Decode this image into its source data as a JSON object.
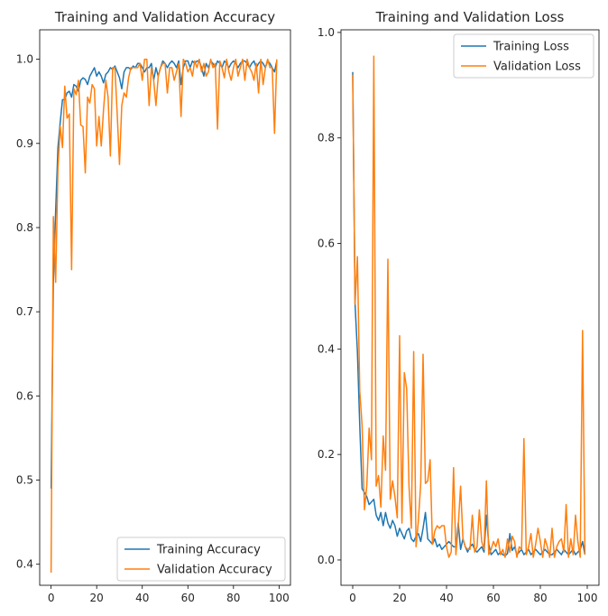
{
  "chart_data": [
    {
      "type": "line",
      "title": "Training and Validation Accuracy",
      "xlabel": "",
      "ylabel": "",
      "xlim": [
        -5,
        105
      ],
      "ylim": [
        0.375,
        1.035
      ],
      "xticks": [
        0,
        20,
        40,
        60,
        80,
        100
      ],
      "yticks": [
        0.4,
        0.5,
        0.6,
        0.7,
        0.8,
        0.9,
        1.0
      ],
      "ytick_labels": [
        "0.4",
        "0.5",
        "0.6",
        "0.7",
        "0.8",
        "0.9",
        "1.0"
      ],
      "legend": "lower-right",
      "grid": false,
      "series": [
        {
          "name": "Training Accuracy",
          "color": "#1f77b4",
          "x": [
            0,
            1,
            2,
            3,
            4,
            5,
            6,
            7,
            8,
            9,
            10,
            11,
            12,
            13,
            14,
            15,
            16,
            17,
            18,
            19,
            20,
            21,
            22,
            23,
            24,
            25,
            26,
            27,
            28,
            29,
            30,
            31,
            32,
            33,
            34,
            35,
            36,
            37,
            38,
            39,
            40,
            41,
            42,
            43,
            44,
            45,
            46,
            47,
            48,
            49,
            50,
            51,
            52,
            53,
            54,
            55,
            56,
            57,
            58,
            59,
            60,
            61,
            62,
            63,
            64,
            65,
            66,
            67,
            68,
            69,
            70,
            71,
            72,
            73,
            74,
            75,
            76,
            77,
            78,
            79,
            80,
            81,
            82,
            83,
            84,
            85,
            86,
            87,
            88,
            89,
            90,
            91,
            92,
            93,
            94,
            95,
            96,
            97,
            98,
            99
          ],
          "y": [
            0.49,
            0.735,
            0.82,
            0.895,
            0.925,
            0.952,
            0.952,
            0.96,
            0.962,
            0.955,
            0.97,
            0.968,
            0.962,
            0.975,
            0.978,
            0.976,
            0.97,
            0.98,
            0.985,
            0.99,
            0.98,
            0.985,
            0.98,
            0.972,
            0.982,
            0.985,
            0.99,
            0.988,
            0.992,
            0.985,
            0.978,
            0.965,
            0.985,
            0.99,
            0.99,
            0.988,
            0.992,
            0.99,
            0.995,
            0.995,
            0.99,
            0.985,
            0.99,
            0.99,
            0.995,
            0.975,
            0.99,
            0.98,
            0.99,
            0.998,
            0.995,
            0.99,
            0.995,
            0.998,
            0.995,
            0.99,
            0.998,
            0.97,
            0.99,
            0.998,
            0.998,
            0.99,
            0.998,
            0.995,
            0.998,
            0.998,
            0.99,
            0.98,
            0.995,
            0.99,
            0.998,
            0.995,
            0.99,
            0.998,
            0.995,
            0.99,
            0.998,
            0.995,
            0.99,
            0.995,
            0.998,
            0.995,
            0.99,
            0.995,
            0.998,
            0.998,
            0.995,
            0.99,
            0.995,
            0.998,
            0.99,
            0.995,
            0.998,
            0.995,
            0.99,
            0.998,
            0.995,
            0.99,
            0.985,
            0.998
          ]
        },
        {
          "name": "Validation Accuracy",
          "color": "#ff7f0e",
          "x": [
            0,
            1,
            2,
            3,
            4,
            5,
            6,
            7,
            8,
            9,
            10,
            11,
            12,
            13,
            14,
            15,
            16,
            17,
            18,
            19,
            20,
            21,
            22,
            23,
            24,
            25,
            26,
            27,
            28,
            29,
            30,
            31,
            32,
            33,
            34,
            35,
            36,
            37,
            38,
            39,
            40,
            41,
            42,
            43,
            44,
            45,
            46,
            47,
            48,
            49,
            50,
            51,
            52,
            53,
            54,
            55,
            56,
            57,
            58,
            59,
            60,
            61,
            62,
            63,
            64,
            65,
            66,
            67,
            68,
            69,
            70,
            71,
            72,
            73,
            74,
            75,
            76,
            77,
            78,
            79,
            80,
            81,
            82,
            83,
            84,
            85,
            86,
            87,
            88,
            89,
            90,
            91,
            92,
            93,
            94,
            95,
            96,
            97,
            98,
            99
          ],
          "y": [
            0.39,
            0.813,
            0.735,
            0.87,
            0.92,
            0.895,
            0.968,
            0.93,
            0.935,
            0.75,
            0.965,
            0.958,
            0.975,
            0.922,
            0.92,
            0.865,
            0.955,
            0.948,
            0.97,
            0.965,
            0.897,
            0.932,
            0.897,
            0.94,
            0.975,
            0.955,
            0.885,
            0.99,
            0.99,
            0.935,
            0.875,
            0.945,
            0.96,
            0.955,
            0.978,
            0.99,
            0.99,
            0.99,
            0.99,
            0.995,
            0.975,
            1.0,
            1.0,
            0.945,
            0.99,
            0.975,
            0.945,
            0.98,
            0.99,
            0.995,
            0.995,
            0.96,
            0.99,
            0.99,
            0.975,
            0.985,
            0.995,
            0.932,
            1.0,
            0.995,
            0.985,
            0.99,
            0.98,
            0.998,
            0.99,
            1.0,
            0.985,
            0.995,
            0.98,
            0.985,
            1.0,
            0.99,
            0.995,
            0.917,
            0.998,
            0.99,
            0.978,
            1.0,
            0.985,
            0.975,
            0.99,
            1.0,
            0.98,
            0.99,
            1.0,
            0.975,
            1.0,
            0.99,
            0.985,
            0.975,
            0.995,
            0.96,
            1.0,
            0.97,
            0.99,
            1.0,
            0.99,
            0.99,
            0.912,
            1.0
          ]
        }
      ]
    },
    {
      "type": "line",
      "title": "Training and Validation Loss",
      "xlabel": "",
      "ylabel": "",
      "xlim": [
        -5,
        105
      ],
      "ylim": [
        -0.048,
        1.005
      ],
      "xticks": [
        0,
        20,
        40,
        60,
        80,
        100
      ],
      "yticks": [
        0.0,
        0.2,
        0.4,
        0.6,
        0.8,
        1.0
      ],
      "ytick_labels": [
        "0.0",
        "0.2",
        "0.4",
        "0.6",
        "0.8",
        "1.0"
      ],
      "legend": "upper-right",
      "grid": false,
      "series": [
        {
          "name": "Training Loss",
          "color": "#1f77b4",
          "x": [
            0,
            1,
            2,
            3,
            4,
            5,
            6,
            7,
            8,
            9,
            10,
            11,
            12,
            13,
            14,
            15,
            16,
            17,
            18,
            19,
            20,
            21,
            22,
            23,
            24,
            25,
            26,
            27,
            28,
            29,
            30,
            31,
            32,
            33,
            34,
            35,
            36,
            37,
            38,
            39,
            40,
            41,
            42,
            43,
            44,
            45,
            46,
            47,
            48,
            49,
            50,
            51,
            52,
            53,
            54,
            55,
            56,
            57,
            58,
            59,
            60,
            61,
            62,
            63,
            64,
            65,
            66,
            67,
            68,
            69,
            70,
            71,
            72,
            73,
            74,
            75,
            76,
            77,
            78,
            79,
            80,
            81,
            82,
            83,
            84,
            85,
            86,
            87,
            88,
            89,
            90,
            91,
            92,
            93,
            94,
            95,
            96,
            97,
            98,
            99
          ],
          "y": [
            0.925,
            0.485,
            0.395,
            0.255,
            0.135,
            0.128,
            0.12,
            0.105,
            0.11,
            0.115,
            0.085,
            0.075,
            0.09,
            0.065,
            0.09,
            0.07,
            0.06,
            0.075,
            0.065,
            0.045,
            0.06,
            0.05,
            0.04,
            0.055,
            0.06,
            0.04,
            0.035,
            0.045,
            0.05,
            0.035,
            0.06,
            0.09,
            0.04,
            0.035,
            0.03,
            0.04,
            0.025,
            0.03,
            0.02,
            0.025,
            0.03,
            0.035,
            0.03,
            0.025,
            0.025,
            0.07,
            0.02,
            0.04,
            0.025,
            0.015,
            0.025,
            0.03,
            0.02,
            0.015,
            0.02,
            0.025,
            0.015,
            0.085,
            0.03,
            0.01,
            0.015,
            0.02,
            0.01,
            0.015,
            0.01,
            0.008,
            0.012,
            0.05,
            0.018,
            0.025,
            0.01,
            0.015,
            0.02,
            0.01,
            0.015,
            0.02,
            0.01,
            0.015,
            0.02,
            0.015,
            0.01,
            0.015,
            0.02,
            0.015,
            0.01,
            0.01,
            0.015,
            0.02,
            0.015,
            0.01,
            0.02,
            0.015,
            0.01,
            0.015,
            0.02,
            0.01,
            0.015,
            0.02,
            0.035,
            0.01
          ]
        },
        {
          "name": "Validation Loss",
          "color": "#ff7f0e",
          "x": [
            0,
            1,
            2,
            3,
            4,
            5,
            6,
            7,
            8,
            9,
            10,
            11,
            12,
            13,
            14,
            15,
            16,
            17,
            18,
            19,
            20,
            21,
            22,
            23,
            24,
            25,
            26,
            27,
            28,
            29,
            30,
            31,
            32,
            33,
            34,
            35,
            36,
            37,
            38,
            39,
            40,
            41,
            42,
            43,
            44,
            45,
            46,
            47,
            48,
            49,
            50,
            51,
            52,
            53,
            54,
            55,
            56,
            57,
            58,
            59,
            60,
            61,
            62,
            63,
            64,
            65,
            66,
            67,
            68,
            69,
            70,
            71,
            72,
            73,
            74,
            75,
            76,
            77,
            78,
            79,
            80,
            81,
            82,
            83,
            84,
            85,
            86,
            87,
            88,
            89,
            90,
            91,
            92,
            93,
            94,
            95,
            96,
            97,
            98,
            99
          ],
          "y": [
            0.92,
            0.485,
            0.575,
            0.32,
            0.255,
            0.095,
            0.14,
            0.25,
            0.19,
            0.955,
            0.14,
            0.16,
            0.1,
            0.235,
            0.17,
            0.57,
            0.115,
            0.15,
            0.12,
            0.08,
            0.425,
            0.07,
            0.355,
            0.325,
            0.14,
            0.06,
            0.395,
            0.025,
            0.075,
            0.145,
            0.39,
            0.145,
            0.15,
            0.19,
            0.03,
            0.055,
            0.065,
            0.06,
            0.065,
            0.065,
            0.025,
            0.005,
            0.015,
            0.175,
            0.01,
            0.065,
            0.14,
            0.04,
            0.025,
            0.02,
            0.02,
            0.085,
            0.015,
            0.025,
            0.095,
            0.035,
            0.02,
            0.15,
            0.01,
            0.02,
            0.035,
            0.025,
            0.04,
            0.01,
            0.02,
            0.005,
            0.04,
            0.015,
            0.045,
            0.035,
            0.005,
            0.025,
            0.02,
            0.23,
            0.01,
            0.025,
            0.05,
            0.005,
            0.03,
            0.06,
            0.035,
            0.005,
            0.04,
            0.025,
            0.005,
            0.06,
            0.005,
            0.025,
            0.035,
            0.04,
            0.015,
            0.105,
            0.005,
            0.04,
            0.01,
            0.085,
            0.035,
            0.005,
            0.435,
            0.01
          ]
        }
      ]
    }
  ]
}
